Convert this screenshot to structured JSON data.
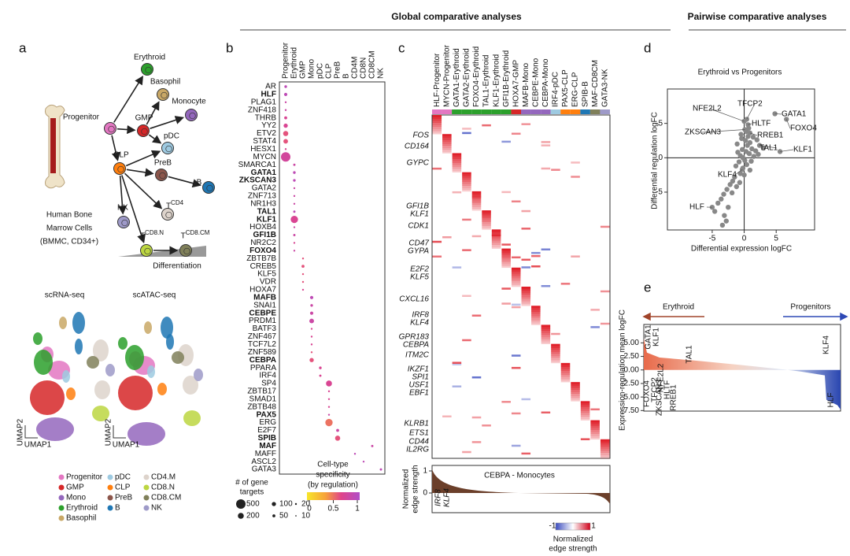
{
  "headers": {
    "global": "Global comparative analyses",
    "pairwise": "Pairwise comparative analyses"
  },
  "panel_a": {
    "letter": "a",
    "nodes": [
      {
        "name": "Erythroid",
        "color": "#2ca02c"
      },
      {
        "name": "Basophil",
        "color": "#c9a866"
      },
      {
        "name": "Progenitor",
        "color": "#e377c2"
      },
      {
        "name": "GMP",
        "color": "#d62728"
      },
      {
        "name": "Monocyte",
        "color": "#9467bd"
      },
      {
        "name": "pDC",
        "color": "#9ecae1"
      },
      {
        "name": "CLP",
        "color": "#ff7f0e"
      },
      {
        "name": "PreB",
        "color": "#8c564b"
      },
      {
        "name": "B",
        "color": "#1f77b4"
      },
      {
        "name": "T",
        "sup": "CD4",
        "color": "#ddd3cb"
      },
      {
        "name": "NK",
        "color": "#9e9ac8"
      },
      {
        "name": "T",
        "sup": "CD8.N",
        "color": "#bcd641"
      },
      {
        "name": "T",
        "sup": "CD8.CM",
        "color": "#80805a"
      }
    ],
    "bone_label": [
      "Human Bone",
      "Marrow Cells",
      "(BMMC, CD34+)"
    ],
    "differentiation": "Differentiation",
    "umap_titles": [
      "scRNA-seq",
      "scATAC-seq"
    ],
    "umap_axes": [
      "UMAP2",
      "UMAP1"
    ],
    "legend": [
      {
        "name": "Progenitor",
        "color": "#e377c2"
      },
      {
        "name": "GMP",
        "color": "#d62728"
      },
      {
        "name": "Mono",
        "color": "#9467bd"
      },
      {
        "name": "Erythroid",
        "color": "#2ca02c"
      },
      {
        "name": "Basophil",
        "color": "#c9a866"
      },
      {
        "name": "pDC",
        "color": "#9ecae1"
      },
      {
        "name": "CLP",
        "color": "#ff7f0e"
      },
      {
        "name": "PreB",
        "color": "#8c564b"
      },
      {
        "name": "B",
        "color": "#1f77b4"
      },
      {
        "name": "CD4.M",
        "color": "#ddd3cb"
      },
      {
        "name": "CD8.N",
        "color": "#bcd641"
      },
      {
        "name": "CD8.CM",
        "color": "#80805a"
      },
      {
        "name": "NK",
        "color": "#9e9ac8"
      }
    ]
  },
  "panel_b": {
    "letter": "b",
    "columns": [
      "Progenitor",
      "Erythroid",
      "GMP",
      "Mono",
      "pDC",
      "CLP",
      "PreB",
      "B",
      "CD4M",
      "CD8N",
      "CD8CM",
      "NK"
    ],
    "rows": [
      {
        "name": "AR",
        "highlight": false,
        "dot": [
          0,
          40,
          0.9
        ]
      },
      {
        "name": "HLF",
        "highlight": true,
        "dot": [
          0,
          60,
          0.9
        ]
      },
      {
        "name": "PLAG1",
        "highlight": false,
        "dot": [
          0,
          20,
          0.8
        ]
      },
      {
        "name": "ZNF418",
        "highlight": false,
        "dot": [
          0,
          20,
          0.8
        ]
      },
      {
        "name": "THRB",
        "highlight": false,
        "dot": [
          0,
          50,
          0.7
        ]
      },
      {
        "name": "YY2",
        "highlight": false,
        "dot": [
          0,
          100,
          0.7
        ]
      },
      {
        "name": "ETV2",
        "highlight": false,
        "dot": [
          0,
          150,
          0.6
        ]
      },
      {
        "name": "STAT4",
        "highlight": false,
        "dot": [
          0,
          120,
          0.6
        ]
      },
      {
        "name": "HESX1",
        "highlight": false,
        "dot": [
          0,
          20,
          0.7
        ]
      },
      {
        "name": "MYCN",
        "highlight": false,
        "dot": [
          0,
          500,
          0.75
        ]
      },
      {
        "name": "SMARCA1",
        "highlight": false,
        "dot": [
          1,
          30,
          0.8
        ]
      },
      {
        "name": "GATA1",
        "highlight": true,
        "dot": [
          1,
          40,
          0.9
        ]
      },
      {
        "name": "ZKSCAN3",
        "highlight": true,
        "dot": [
          1,
          40,
          0.9
        ]
      },
      {
        "name": "GATA2",
        "highlight": false,
        "dot": [
          1,
          20,
          0.8
        ]
      },
      {
        "name": "ZNF713",
        "highlight": false,
        "dot": [
          1,
          20,
          0.8
        ]
      },
      {
        "name": "NR1H3",
        "highlight": false,
        "dot": [
          1,
          20,
          0.8
        ]
      },
      {
        "name": "TAL1",
        "highlight": true,
        "dot": [
          1,
          30,
          0.9
        ]
      },
      {
        "name": "KLF1",
        "highlight": true,
        "dot": [
          1,
          300,
          0.7
        ]
      },
      {
        "name": "HOXB4",
        "highlight": false,
        "dot": [
          1,
          20,
          0.8
        ]
      },
      {
        "name": "GFI1B",
        "highlight": true,
        "dot": [
          1,
          30,
          0.8
        ]
      },
      {
        "name": "NR2C2",
        "highlight": false,
        "dot": [
          1,
          20,
          0.7
        ]
      },
      {
        "name": "FOXO4",
        "highlight": true,
        "dot": [
          1,
          20,
          0.8
        ]
      },
      {
        "name": "ZBTB7B",
        "highlight": false,
        "dot": [
          2,
          20,
          0.6
        ]
      },
      {
        "name": "CREB5",
        "highlight": false,
        "dot": [
          2,
          50,
          0.6
        ]
      },
      {
        "name": "KLF5",
        "highlight": false,
        "dot": [
          2,
          20,
          0.6
        ]
      },
      {
        "name": "VDR",
        "highlight": false,
        "dot": [
          2,
          20,
          0.6
        ]
      },
      {
        "name": "HOXA7",
        "highlight": false,
        "dot": [
          2,
          20,
          0.7
        ]
      },
      {
        "name": "MAFB",
        "highlight": true,
        "dot": [
          3,
          60,
          0.9
        ]
      },
      {
        "name": "SNAI1",
        "highlight": false,
        "dot": [
          3,
          40,
          0.8
        ]
      },
      {
        "name": "CEBPE",
        "highlight": true,
        "dot": [
          3,
          60,
          0.8
        ]
      },
      {
        "name": "PRDM1",
        "highlight": false,
        "dot": [
          3,
          120,
          0.8
        ]
      },
      {
        "name": "BATF3",
        "highlight": false,
        "dot": [
          3,
          20,
          0.7
        ]
      },
      {
        "name": "ZNF467",
        "highlight": false,
        "dot": [
          3,
          20,
          0.7
        ]
      },
      {
        "name": "TCF7L2",
        "highlight": false,
        "dot": [
          3,
          20,
          0.7
        ]
      },
      {
        "name": "ZNF589",
        "highlight": false,
        "dot": [
          3,
          20,
          0.6
        ]
      },
      {
        "name": "CEBPA",
        "highlight": true,
        "dot": [
          3,
          100,
          0.6
        ]
      },
      {
        "name": "PPARA",
        "highlight": false,
        "dot": [
          4,
          40,
          0.7
        ]
      },
      {
        "name": "IRF4",
        "highlight": false,
        "dot": [
          4,
          30,
          0.7
        ]
      },
      {
        "name": "SP4",
        "highlight": false,
        "dot": [
          5,
          200,
          0.7
        ]
      },
      {
        "name": "ZBTB17",
        "highlight": false,
        "dot": [
          5,
          20,
          0.7
        ]
      },
      {
        "name": "SMAD1",
        "highlight": false,
        "dot": [
          5,
          20,
          0.7
        ]
      },
      {
        "name": "ZBTB48",
        "highlight": false,
        "dot": [
          5,
          20,
          0.7
        ]
      },
      {
        "name": "PAX5",
        "highlight": true,
        "dot": [
          5,
          20,
          0.8
        ]
      },
      {
        "name": "ERG",
        "highlight": false,
        "dot": [
          5,
          300,
          0.5
        ]
      },
      {
        "name": "E2F7",
        "highlight": false,
        "dot": [
          6,
          50,
          0.8
        ]
      },
      {
        "name": "SPIB",
        "highlight": true,
        "dot": [
          6,
          150,
          0.6
        ]
      },
      {
        "name": "MAF",
        "highlight": true,
        "dot": [
          10,
          30,
          0.8
        ]
      },
      {
        "name": "MAFF",
        "highlight": false,
        "dot": [
          8,
          20,
          0.9
        ]
      },
      {
        "name": "ASCL2",
        "highlight": false,
        "dot": [
          9,
          20,
          0.9
        ]
      },
      {
        "name": "GATA3",
        "highlight": false,
        "dot": [
          11,
          30,
          0.9
        ]
      }
    ],
    "size_legend": {
      "title": [
        "# of gene",
        "targets"
      ],
      "values": [
        500,
        100,
        20,
        200,
        50,
        10
      ]
    },
    "color_legend": {
      "title": [
        "Cell-type",
        "specificity",
        "(by regulation)"
      ],
      "ticks": [
        0,
        0.5,
        1
      ]
    }
  },
  "panel_c": {
    "letter": "c",
    "columns": [
      "HLF-Progenitor",
      "MYCN-Progenitor",
      "GATA1-Erythroid",
      "GATA2-Erythroid",
      "FOXO4-Erythroid",
      "TAL1-Erythroid",
      "KLF1-Erythroid",
      "GFI1B-Erythroid",
      "HOXA7-GMP",
      "MAFB-Mono",
      "CEBPE-Mono",
      "CEBPA-Mono",
      "IRF4-pDC",
      "PAX5-CLP",
      "ERG-CLP",
      "SPIB-B",
      "MAF-CD8CM",
      "GATA3-NK"
    ],
    "column_colors": [
      "#e377c2",
      "#e377c2",
      "#2ca02c",
      "#2ca02c",
      "#2ca02c",
      "#2ca02c",
      "#2ca02c",
      "#2ca02c",
      "#d62728",
      "#9467bd",
      "#9467bd",
      "#9467bd",
      "#9ecae1",
      "#ff7f0e",
      "#ff7f0e",
      "#1f77b4",
      "#80805a",
      "#9e9ac8"
    ],
    "genes": [
      {
        "name": "FOS",
        "color": "#e377c2"
      },
      {
        "name": "CD164",
        "color": "#e377c2"
      },
      {
        "name": "GYPC",
        "color": "#2ca02c"
      },
      {
        "name": "GFI1B",
        "color": "#2ca02c"
      },
      {
        "name": "KLF1",
        "color": "#2ca02c"
      },
      {
        "name": "CDK1",
        "color": "#2ca02c"
      },
      {
        "name": "CD47",
        "color": "#2ca02c"
      },
      {
        "name": "GYPA",
        "color": "#2ca02c"
      },
      {
        "name": "E2F2",
        "color": "#2ca02c"
      },
      {
        "name": "KLF5",
        "color": "#d62728"
      },
      {
        "name": "CXCL16",
        "color": "#9467bd"
      },
      {
        "name": "IRF8",
        "color": "#9467bd"
      },
      {
        "name": "KLF4",
        "color": "#9467bd"
      },
      {
        "name": "GPR183",
        "color": "#9467bd"
      },
      {
        "name": "CEBPA",
        "color": "#9467bd"
      },
      {
        "name": "ITM2C",
        "color": "#8fbfdc"
      },
      {
        "name": "IKZF1",
        "color": "#ff7f0e"
      },
      {
        "name": "SPI1",
        "color": "#ff7f0e"
      },
      {
        "name": "USF1",
        "color": "#ff7f0e"
      },
      {
        "name": "EBF1",
        "color": "#ff7f0e"
      },
      {
        "name": "KLRB1",
        "color": "#80805a"
      },
      {
        "name": "ETS1",
        "color": "#80805a"
      },
      {
        "name": "CD44",
        "color": "#8fa7d6"
      },
      {
        "name": "IL2RG",
        "color": "#7b7fc4"
      }
    ],
    "sub_title": "CEBPA - Monocytes",
    "sub_ylabel": [
      "Normalized",
      "edge strength"
    ],
    "sub_ticks": [
      1,
      0
    ],
    "sub_genes": [
      "IRF8",
      "KLF4"
    ],
    "colorbar": {
      "ticks": [
        -1,
        1
      ],
      "label": [
        "Normalized",
        "edge strength"
      ]
    }
  },
  "panel_d": {
    "letter": "d",
    "title": "Erythroid vs Progenitors",
    "xlabel": "Differential expression logFC",
    "ylabel": "Differential regulation logFC",
    "xlim": [
      -12,
      11
    ],
    "ylim": [
      -10.5,
      10
    ],
    "xticks": [
      -5,
      0,
      5
    ],
    "yticks": [
      -5,
      0,
      5
    ],
    "labeled": [
      {
        "name": "NFE2L2",
        "color": "#c2379b",
        "x": 0,
        "y": 5.3
      },
      {
        "name": "TFCP2",
        "color": "#c2379b",
        "x": 0.4,
        "y": 5.6
      },
      {
        "name": "GATA1",
        "color": "#222",
        "x": 4.8,
        "y": 6.4
      },
      {
        "name": "HLTF",
        "color": "#c2379b",
        "x": 0.6,
        "y": 4.8
      },
      {
        "name": "FOXO4",
        "color": "#222",
        "x": 6.6,
        "y": 5.6
      },
      {
        "name": "ZKSCAN3",
        "color": "#c2379b",
        "x": 0.1,
        "y": 4.1
      },
      {
        "name": "RREB1",
        "color": "#c2379b",
        "x": 0.9,
        "y": 3.6
      },
      {
        "name": "TAL1",
        "color": "#222",
        "x": 2.4,
        "y": 1.8
      },
      {
        "name": "KLF1",
        "color": "#222",
        "x": 5.6,
        "y": 0.9
      },
      {
        "name": "KLF4",
        "color": "#222",
        "x": -0.3,
        "y": -1.7
      },
      {
        "name": "HLF",
        "color": "#222",
        "x": -5,
        "y": -7.2
      }
    ],
    "points": [
      [
        0.2,
        2.5
      ],
      [
        0.5,
        1.8
      ],
      [
        -0.3,
        1.2
      ],
      [
        0.8,
        0.6
      ],
      [
        -0.6,
        0.3
      ],
      [
        0.1,
        -0.4
      ],
      [
        0.4,
        -1
      ],
      [
        -0.2,
        -1.5
      ],
      [
        1.2,
        1.3
      ],
      [
        1.5,
        0.2
      ],
      [
        -1,
        0.8
      ],
      [
        -0.8,
        -0.6
      ],
      [
        0.6,
        3.1
      ],
      [
        0.9,
        2.2
      ],
      [
        -0.4,
        2.8
      ],
      [
        1.1,
        -0.5
      ],
      [
        -1.3,
        -1.2
      ],
      [
        0.3,
        3.8
      ],
      [
        -0.5,
        3.4
      ],
      [
        1.8,
        1.0
      ],
      [
        2.2,
        0.5
      ],
      [
        0,
        -2.5
      ],
      [
        -0.6,
        -2.3
      ],
      [
        -1.5,
        -2.8
      ],
      [
        -1.8,
        -3.4
      ],
      [
        -2.2,
        -3.9
      ],
      [
        -2.7,
        -4.6
      ],
      [
        -3.2,
        -5.3
      ],
      [
        -3.6,
        -6.0
      ],
      [
        -4.1,
        -6.6
      ],
      [
        -4.6,
        -7.8
      ],
      [
        -3.1,
        -8.4
      ],
      [
        -2.8,
        -9.2
      ],
      [
        -3.4,
        -9.8
      ],
      [
        -2.5,
        -7.2
      ],
      [
        -1.9,
        -5.1
      ],
      [
        -1.2,
        -4.2
      ],
      [
        -0.7,
        -3.6
      ],
      [
        0.7,
        4.3
      ],
      [
        1.4,
        3.0
      ],
      [
        2.0,
        2.6
      ],
      [
        3.0,
        1.4
      ],
      [
        -0.2,
        0.0
      ],
      [
        0.3,
        0.9
      ],
      [
        -1.1,
        2.0
      ],
      [
        0.9,
        -1.8
      ]
    ]
  },
  "panel_e": {
    "letter": "e",
    "left_arrow": "Erythroid",
    "right_arrow": "Progenitors",
    "ylabel": "Expression-regulation mean logFC",
    "ylim": [
      -7.6,
      8.4
    ],
    "yticks": [
      {
        "value": 5,
        "label": "5.00"
      },
      {
        "value": 2.5,
        "label": "2.50"
      },
      {
        "value": 0,
        "label": "0.00"
      },
      {
        "value": -2.5,
        "label": "-2.50"
      },
      {
        "value": -5,
        "label": "-5.00"
      },
      {
        "value": -7.5,
        "label": "-7.50"
      }
    ],
    "labels": [
      "GATA1",
      "KLF1",
      "TFCP2",
      "NFE2L2",
      "FOXO4",
      "ZKSCAN3",
      "HLTF",
      "RREB1",
      "TAL1",
      "KLF4",
      "HLF"
    ]
  }
}
